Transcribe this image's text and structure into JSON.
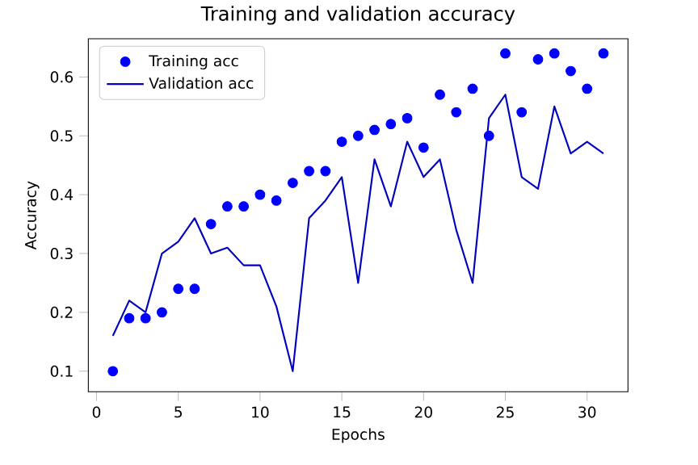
{
  "chart_data": {
    "type": "scatter",
    "title": "Training and validation accuracy",
    "xlabel": "Epochs",
    "ylabel": "Accuracy",
    "x": [
      1,
      2,
      3,
      4,
      5,
      6,
      7,
      8,
      9,
      10,
      11,
      12,
      13,
      14,
      15,
      16,
      17,
      18,
      19,
      20,
      21,
      22,
      23,
      24,
      25,
      26,
      27,
      28,
      29,
      30,
      31
    ],
    "series": [
      {
        "name": "Training acc",
        "marker": "circle",
        "color": "#0000ff",
        "values": [
          0.1,
          0.19,
          0.19,
          0.2,
          0.24,
          0.24,
          0.35,
          0.38,
          0.38,
          0.4,
          0.39,
          0.42,
          0.44,
          0.44,
          0.49,
          0.5,
          0.51,
          0.52,
          0.53,
          0.48,
          0.57,
          0.54,
          0.58,
          0.5,
          0.64,
          0.54,
          0.63,
          0.64,
          0.61,
          0.58,
          0.64
        ]
      },
      {
        "name": "Validation acc",
        "type": "line",
        "marker": "none",
        "color": "#0000bf",
        "values": [
          0.16,
          0.22,
          0.2,
          0.3,
          0.32,
          0.36,
          0.3,
          0.31,
          0.28,
          0.28,
          0.21,
          0.1,
          0.36,
          0.39,
          0.43,
          0.25,
          0.46,
          0.38,
          0.49,
          0.43,
          0.46,
          0.34,
          0.25,
          0.53,
          0.57,
          0.43,
          0.41,
          0.55,
          0.47,
          0.49,
          0.47
        ]
      }
    ],
    "xlim": [
      -0.5,
      32.5
    ],
    "ylim": [
      0.065,
      0.665
    ],
    "xticks": [
      0,
      5,
      10,
      15,
      20,
      25,
      30
    ],
    "yticks": [
      0.1,
      0.2,
      0.3,
      0.4,
      0.5,
      0.6
    ],
    "legend": "top left",
    "grid": false
  }
}
